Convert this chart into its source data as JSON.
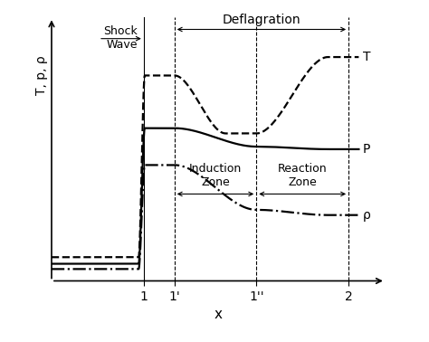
{
  "xlabel": "x",
  "ylabel": "T, p, ρ",
  "x_ticks_labels": [
    "1",
    "1'",
    "1''",
    "2"
  ],
  "x_ticks_pos": [
    1.0,
    1.15,
    1.55,
    2.0
  ],
  "vline_solid": [
    1.0
  ],
  "vline_dashed": [
    1.15,
    1.55,
    2.0
  ],
  "background_color": "#ffffff",
  "line_color": "#000000",
  "curve_linewidth": 1.6,
  "xlim": [
    0.55,
    2.18
  ],
  "ylim": [
    0.0,
    1.0
  ]
}
